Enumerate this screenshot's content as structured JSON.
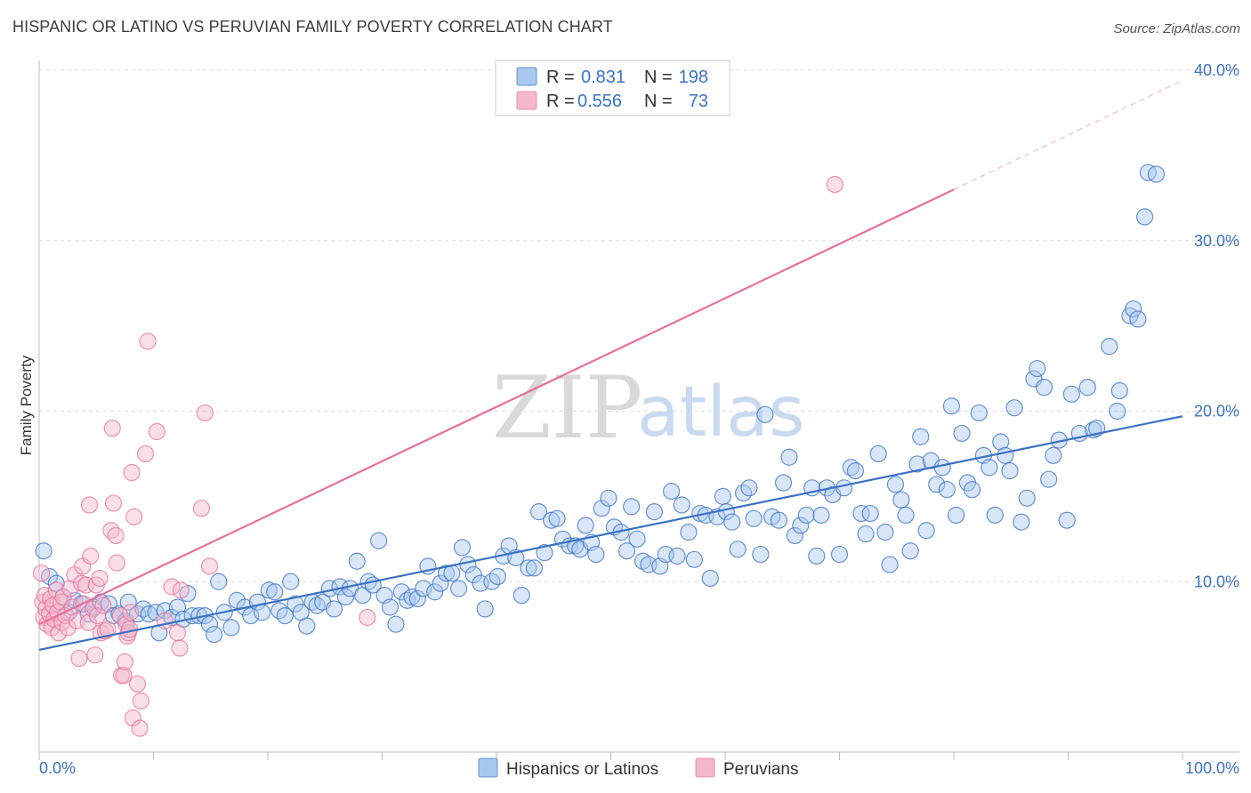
{
  "title": "HISPANIC OR LATINO VS PERUVIAN FAMILY POVERTY CORRELATION CHART",
  "source": "Source: ZipAtlas.com",
  "watermark": {
    "zip": "ZIP",
    "atlas": "atlas"
  },
  "colors": {
    "blue": "#3a72c4",
    "blue_fill": "#a9c8ef",
    "pink": "#e8709a",
    "pink_fill": "#f5b8cb",
    "grid": "#dddddd"
  },
  "legend": {
    "rows": [
      {
        "r_label": "R =",
        "r_value": "0.831",
        "n_label": "N =",
        "n_value": "198",
        "series": "blue"
      },
      {
        "r_label": "R =",
        "r_value": "0.556",
        "n_label": "N =",
        "n_value": "73",
        "series": "pink"
      }
    ]
  },
  "bottom_legend": [
    "Hispanics or Latinos",
    "Peruvians"
  ],
  "chart_data": {
    "type": "scatter",
    "ylabel": "Family Poverty",
    "xlim": [
      0,
      100
    ],
    "ylim": [
      0,
      40
    ],
    "x_tick_labels": [
      "0.0%",
      "100.0%"
    ],
    "y_ticks": [
      {
        "value": 10,
        "label": "10.0%"
      },
      {
        "value": 20,
        "label": "20.0%"
      },
      {
        "value": 30,
        "label": "30.0%"
      },
      {
        "value": 40,
        "label": "40.0%"
      }
    ],
    "series": [
      {
        "name": "Hispanics or Latinos",
        "color": "blue",
        "trend": {
          "x0": 0,
          "y0": 6.0,
          "x1": 100,
          "y1": 19.7
        },
        "points": [
          [
            0.4,
            11.8
          ],
          [
            0.9,
            10.3
          ],
          [
            1.5,
            9.9
          ],
          [
            2.1,
            9.1
          ],
          [
            2.6,
            8.2
          ],
          [
            3.1,
            8.9
          ],
          [
            3.7,
            8.7
          ],
          [
            4.3,
            8.1
          ],
          [
            4.8,
            8.5
          ],
          [
            5.4,
            8.8
          ],
          [
            6.1,
            8.7
          ],
          [
            6.5,
            8.0
          ],
          [
            7.0,
            8.1
          ],
          [
            7.6,
            7.7
          ],
          [
            7.8,
            8.8
          ],
          [
            8.6,
            8.1
          ],
          [
            9.1,
            8.4
          ],
          [
            9.6,
            8.1
          ],
          [
            10.2,
            8.2
          ],
          [
            10.5,
            7.0
          ],
          [
            11.0,
            8.3
          ],
          [
            11.6,
            7.9
          ],
          [
            12.1,
            8.5
          ],
          [
            12.6,
            7.8
          ],
          [
            13.0,
            9.3
          ],
          [
            13.4,
            8.0
          ],
          [
            14.0,
            8.0
          ],
          [
            14.5,
            8.0
          ],
          [
            14.9,
            7.5
          ],
          [
            15.3,
            6.9
          ],
          [
            15.7,
            10.0
          ],
          [
            16.2,
            8.2
          ],
          [
            16.8,
            7.3
          ],
          [
            17.3,
            8.9
          ],
          [
            18.0,
            8.5
          ],
          [
            18.5,
            8.0
          ],
          [
            19.1,
            8.8
          ],
          [
            19.5,
            8.2
          ],
          [
            20.1,
            9.5
          ],
          [
            20.6,
            9.4
          ],
          [
            21.0,
            8.3
          ],
          [
            21.5,
            8.0
          ],
          [
            22.0,
            10.0
          ],
          [
            22.4,
            8.7
          ],
          [
            22.9,
            8.2
          ],
          [
            23.4,
            7.4
          ],
          [
            23.9,
            8.8
          ],
          [
            24.3,
            8.6
          ],
          [
            24.8,
            8.8
          ],
          [
            25.4,
            9.6
          ],
          [
            25.8,
            8.4
          ],
          [
            26.3,
            9.7
          ],
          [
            26.8,
            9.1
          ],
          [
            27.2,
            9.6
          ],
          [
            27.8,
            11.2
          ],
          [
            28.3,
            9.2
          ],
          [
            28.8,
            10.0
          ],
          [
            29.2,
            9.8
          ],
          [
            29.7,
            12.4
          ],
          [
            30.2,
            9.2
          ],
          [
            30.7,
            8.5
          ],
          [
            31.2,
            7.5
          ],
          [
            31.7,
            9.4
          ],
          [
            32.2,
            8.9
          ],
          [
            32.6,
            9.1
          ],
          [
            33.1,
            9.0
          ],
          [
            33.6,
            9.6
          ],
          [
            34.0,
            10.9
          ],
          [
            34.6,
            9.4
          ],
          [
            35.1,
            9.9
          ],
          [
            35.6,
            10.5
          ],
          [
            36.1,
            10.5
          ],
          [
            36.7,
            9.6
          ],
          [
            37.0,
            12.0
          ],
          [
            37.5,
            11.0
          ],
          [
            38.0,
            10.4
          ],
          [
            38.6,
            9.9
          ],
          [
            39.0,
            8.4
          ],
          [
            39.6,
            10.0
          ],
          [
            40.1,
            10.3
          ],
          [
            40.6,
            11.5
          ],
          [
            41.1,
            12.1
          ],
          [
            41.7,
            11.4
          ],
          [
            42.2,
            9.2
          ],
          [
            42.8,
            10.8
          ],
          [
            43.3,
            10.8
          ],
          [
            43.7,
            14.1
          ],
          [
            44.2,
            11.7
          ],
          [
            44.8,
            13.6
          ],
          [
            45.3,
            13.7
          ],
          [
            45.8,
            12.5
          ],
          [
            46.4,
            12.1
          ],
          [
            46.9,
            12.1
          ],
          [
            47.3,
            11.9
          ],
          [
            47.8,
            13.3
          ],
          [
            48.3,
            12.3
          ],
          [
            48.7,
            11.6
          ],
          [
            49.2,
            14.3
          ],
          [
            49.8,
            14.9
          ],
          [
            50.3,
            13.2
          ],
          [
            50.9,
            12.9
          ],
          [
            51.4,
            11.8
          ],
          [
            51.8,
            14.4
          ],
          [
            52.3,
            12.5
          ],
          [
            52.8,
            11.2
          ],
          [
            53.3,
            11.0
          ],
          [
            53.8,
            14.1
          ],
          [
            54.3,
            10.9
          ],
          [
            54.8,
            11.6
          ],
          [
            55.3,
            15.3
          ],
          [
            55.8,
            11.5
          ],
          [
            56.2,
            14.5
          ],
          [
            56.8,
            12.9
          ],
          [
            57.3,
            11.3
          ],
          [
            57.8,
            14.0
          ],
          [
            58.3,
            13.9
          ],
          [
            58.7,
            10.2
          ],
          [
            59.3,
            13.8
          ],
          [
            59.8,
            15.0
          ],
          [
            60.1,
            14.1
          ],
          [
            60.6,
            13.5
          ],
          [
            61.1,
            11.9
          ],
          [
            61.6,
            15.2
          ],
          [
            62.1,
            15.5
          ],
          [
            62.5,
            13.7
          ],
          [
            63.1,
            11.6
          ],
          [
            63.5,
            19.8
          ],
          [
            64.1,
            13.8
          ],
          [
            64.7,
            13.6
          ],
          [
            65.1,
            15.8
          ],
          [
            65.6,
            17.3
          ],
          [
            66.1,
            12.7
          ],
          [
            66.6,
            13.3
          ],
          [
            67.1,
            13.9
          ],
          [
            67.6,
            15.5
          ],
          [
            68.0,
            11.5
          ],
          [
            68.4,
            13.9
          ],
          [
            68.9,
            15.5
          ],
          [
            69.4,
            15.1
          ],
          [
            70.0,
            11.6
          ],
          [
            70.4,
            15.5
          ],
          [
            71.0,
            16.7
          ],
          [
            71.4,
            16.5
          ],
          [
            71.9,
            14.0
          ],
          [
            72.3,
            12.8
          ],
          [
            72.7,
            14.0
          ],
          [
            73.4,
            17.5
          ],
          [
            74.0,
            12.9
          ],
          [
            74.4,
            11.0
          ],
          [
            74.9,
            15.7
          ],
          [
            75.4,
            14.8
          ],
          [
            75.8,
            13.9
          ],
          [
            76.2,
            11.8
          ],
          [
            76.8,
            16.9
          ],
          [
            77.1,
            18.5
          ],
          [
            77.6,
            13.0
          ],
          [
            78.0,
            17.1
          ],
          [
            78.5,
            15.7
          ],
          [
            79.0,
            16.7
          ],
          [
            79.4,
            15.4
          ],
          [
            79.8,
            20.3
          ],
          [
            80.2,
            13.9
          ],
          [
            80.7,
            18.7
          ],
          [
            81.2,
            15.8
          ],
          [
            81.6,
            15.4
          ],
          [
            82.2,
            19.9
          ],
          [
            82.6,
            17.4
          ],
          [
            83.1,
            16.7
          ],
          [
            83.6,
            13.9
          ],
          [
            84.1,
            18.2
          ],
          [
            84.5,
            17.4
          ],
          [
            84.9,
            16.5
          ],
          [
            85.3,
            20.2
          ],
          [
            85.9,
            13.5
          ],
          [
            86.4,
            14.9
          ],
          [
            87.0,
            21.9
          ],
          [
            87.3,
            22.5
          ],
          [
            87.9,
            21.4
          ],
          [
            88.3,
            16.0
          ],
          [
            88.7,
            17.4
          ],
          [
            89.2,
            18.3
          ],
          [
            89.9,
            13.6
          ],
          [
            90.3,
            21.0
          ],
          [
            91.0,
            18.7
          ],
          [
            91.7,
            21.4
          ],
          [
            92.2,
            18.9
          ],
          [
            92.5,
            19.0
          ],
          [
            93.6,
            23.8
          ],
          [
            94.3,
            20.0
          ],
          [
            94.5,
            21.2
          ],
          [
            95.4,
            25.6
          ],
          [
            95.7,
            26.0
          ],
          [
            96.1,
            25.4
          ],
          [
            96.7,
            31.4
          ],
          [
            97.0,
            34.0
          ],
          [
            97.7,
            33.9
          ]
        ]
      },
      {
        "name": "Peruvians",
        "color": "pink",
        "trend": {
          "x0": 0,
          "y0": 7.5,
          "x1": 80,
          "y1": 33.0
        },
        "trend_ext": {
          "x0": 80,
          "y0": 33.0,
          "x1": 100,
          "y1": 39.4
        },
        "points": [
          [
            0.2,
            10.5
          ],
          [
            0.3,
            8.8
          ],
          [
            0.4,
            7.9
          ],
          [
            0.5,
            9.2
          ],
          [
            0.6,
            8.4
          ],
          [
            0.7,
            7.5
          ],
          [
            0.9,
            8.1
          ],
          [
            1.0,
            9.0
          ],
          [
            1.1,
            7.3
          ],
          [
            1.2,
            8.6
          ],
          [
            1.3,
            7.8
          ],
          [
            1.5,
            9.5
          ],
          [
            1.6,
            8.2
          ],
          [
            1.7,
            7.0
          ],
          [
            1.9,
            8.8
          ],
          [
            2.0,
            7.6
          ],
          [
            2.1,
            9.1
          ],
          [
            2.3,
            8.0
          ],
          [
            2.5,
            7.3
          ],
          [
            2.7,
            9.6
          ],
          [
            2.9,
            8.5
          ],
          [
            3.1,
            10.4
          ],
          [
            3.3,
            7.7
          ],
          [
            3.5,
            5.5
          ],
          [
            3.7,
            9.9
          ],
          [
            3.8,
            10.9
          ],
          [
            3.9,
            8.7
          ],
          [
            4.1,
            9.8
          ],
          [
            4.3,
            7.6
          ],
          [
            4.4,
            14.5
          ],
          [
            4.5,
            11.5
          ],
          [
            4.7,
            8.4
          ],
          [
            4.9,
            5.7
          ],
          [
            5.0,
            9.8
          ],
          [
            5.1,
            8.0
          ],
          [
            5.3,
            10.2
          ],
          [
            5.4,
            7.0
          ],
          [
            5.6,
            8.6
          ],
          [
            5.8,
            7.1
          ],
          [
            6.0,
            7.2
          ],
          [
            6.3,
            13.0
          ],
          [
            6.4,
            19.0
          ],
          [
            6.5,
            14.6
          ],
          [
            6.7,
            12.7
          ],
          [
            6.8,
            11.1
          ],
          [
            7.1,
            8.0
          ],
          [
            7.2,
            4.5
          ],
          [
            7.4,
            4.5
          ],
          [
            7.5,
            5.3
          ],
          [
            7.6,
            7.5
          ],
          [
            7.7,
            6.8
          ],
          [
            7.8,
            7.0
          ],
          [
            7.9,
            7.2
          ],
          [
            8.0,
            8.2
          ],
          [
            8.1,
            16.4
          ],
          [
            8.2,
            2.0
          ],
          [
            8.3,
            13.8
          ],
          [
            8.6,
            4.0
          ],
          [
            8.8,
            1.4
          ],
          [
            8.9,
            3.0
          ],
          [
            9.3,
            17.5
          ],
          [
            9.5,
            24.1
          ],
          [
            10.3,
            18.8
          ],
          [
            11.0,
            7.7
          ],
          [
            11.6,
            9.7
          ],
          [
            12.1,
            7.0
          ],
          [
            12.4,
            9.5
          ],
          [
            12.3,
            6.1
          ],
          [
            14.2,
            14.3
          ],
          [
            14.5,
            19.9
          ],
          [
            14.9,
            10.9
          ],
          [
            28.7,
            7.9
          ],
          [
            69.6,
            33.3
          ]
        ]
      }
    ]
  }
}
